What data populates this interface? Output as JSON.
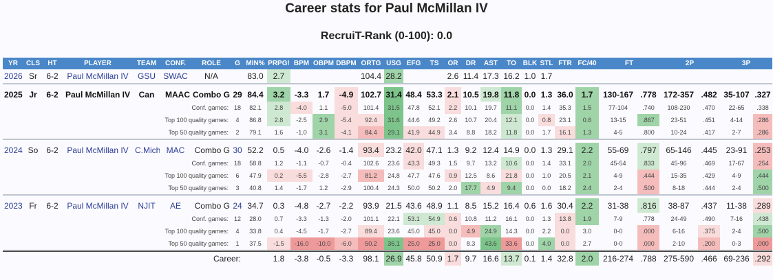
{
  "title": "Career stats for Paul McMillan IV",
  "subtitle": "RecruiT-Rank (0-100): 0.0",
  "headers": [
    "YR",
    "CLS",
    "HT",
    "PLAYER",
    "TEAM",
    "CONF.",
    "ROLE",
    "G",
    "MIN%",
    "PRPG!",
    "BPM",
    "OBPM",
    "DBPM",
    "ORTG",
    "USG",
    "EFG",
    "TS",
    "OR",
    "DR",
    "AST",
    "TO",
    "BLK",
    "STL",
    "FTR",
    "FC/40",
    "FT",
    "",
    "2P",
    "",
    "3P",
    ""
  ],
  "rows": {
    "y2026": [
      "2026",
      "Sr",
      "6-2",
      "Paul McMillan IV",
      "GSU",
      "SWAC",
      "N/A",
      "",
      "83.0",
      "2.7",
      "",
      "",
      "",
      "104.4",
      "28.2",
      "",
      "",
      "2.6",
      "11.4",
      "17.3",
      "16.2",
      "1.0",
      "1.7",
      "",
      "",
      "",
      "",
      "",
      "",
      "",
      ""
    ],
    "y2025": [
      "2025",
      "Jr",
      "6-2",
      "Paul McMillan IV",
      "Can",
      "MAAC",
      "Combo G",
      "29",
      "84.4",
      "3.2",
      "-3.3",
      "1.7",
      "-4.9",
      "102.7",
      "31.4",
      "48.4",
      "53.3",
      "2.1",
      "10.5",
      "19.8",
      "11.8",
      "0.0",
      "1.3",
      "36.0",
      "1.7",
      "130-167",
      ".778",
      "172-357",
      ".482",
      "35-107",
      ".327"
    ],
    "y2025_conf": [
      "Conf. games:",
      "18",
      "82.1",
      "2.8",
      "-4.0",
      "1.1",
      "-5.0",
      "101.4",
      "31.5",
      "47.8",
      "52.1",
      "2.2",
      "10.1",
      "19.7",
      "11.1",
      "0.0",
      "1.4",
      "35.3",
      "1.5",
      "77-104",
      ".740",
      "108-230",
      ".470",
      "22-65",
      ".338"
    ],
    "y2025_t100": [
      "Top 100 quality games:",
      "4",
      "86.8",
      "2.8",
      "-2.5",
      "2.9",
      "-5.4",
      "92.4",
      "31.6",
      "44.6",
      "49.2",
      "2.6",
      "10.7",
      "20.4",
      "12.1",
      "0.0",
      "0.8",
      "23.1",
      "0.6",
      "13-15",
      ".867",
      "23-51",
      ".451",
      "4-14",
      ".286"
    ],
    "y2025_t50": [
      "Top 50 quality games:",
      "2",
      "79.1",
      "1.6",
      "-1.0",
      "3.1",
      "-4.1",
      "84.4",
      "29.1",
      "41.9",
      "44.9",
      "3.4",
      "8.8",
      "18.2",
      "11.8",
      "0.0",
      "1.7",
      "16.1",
      "1.3",
      "4-5",
      ".800",
      "10-24",
      ".417",
      "2-7",
      ".286"
    ],
    "y2024": [
      "2024",
      "So",
      "6-2",
      "Paul McMillan IV",
      "C.Mich",
      "MAC",
      "Combo G",
      "30",
      "52.2",
      "0.5",
      "-4.0",
      "-2.6",
      "-1.4",
      "93.4",
      "23.2",
      "42.0",
      "47.1",
      "1.3",
      "9.2",
      "12.4",
      "14.9",
      "0.0",
      "1.3",
      "29.1",
      "2.2",
      "55-69",
      ".797",
      "65-146",
      ".445",
      "23-91",
      ".253"
    ],
    "y2024_conf": [
      "Conf. games:",
      "18",
      "58.8",
      "1.2",
      "-1.1",
      "-0.7",
      "-0.4",
      "102.6",
      "23.6",
      "43.3",
      "49.3",
      "1.5",
      "9.7",
      "13.2",
      "10.6",
      "0.0",
      "1.4",
      "33.1",
      "2.0",
      "45-54",
      ".833",
      "45-96",
      ".469",
      "17-67",
      ".254"
    ],
    "y2024_t100": [
      "Top 100 quality games:",
      "6",
      "47.9",
      "0.2",
      "-5.5",
      "-2.8",
      "-2.7",
      "81.2",
      "24.8",
      "47.7",
      "47.6",
      "0.9",
      "12.5",
      "8.6",
      "21.8",
      "0.0",
      "1.0",
      "20.5",
      "2.1",
      "4-9",
      ".444",
      "15-35",
      ".429",
      "4-9",
      ".444"
    ],
    "y2024_t50": [
      "Top 50 quality games:",
      "3",
      "40.8",
      "1.4",
      "-1.7",
      "1.2",
      "-2.9",
      "100.4",
      "24.3",
      "50.0",
      "50.2",
      "2.0",
      "17.7",
      "4.9",
      "9.4",
      "0.0",
      "0.0",
      "18.2",
      "2.4",
      "2-4",
      ".500",
      "8-18",
      ".444",
      "2-4",
      ".500"
    ],
    "y2023": [
      "2023",
      "Fr",
      "6-2",
      "Paul McMillan IV",
      "NJIT",
      "AE",
      "Combo G",
      "24",
      "34.7",
      "0.3",
      "-4.8",
      "-2.7",
      "-2.2",
      "93.9",
      "21.5",
      "43.6",
      "48.9",
      "1.1",
      "8.5",
      "15.2",
      "16.4",
      "0.6",
      "1.6",
      "30.4",
      "2.2",
      "31-38",
      ".816",
      "38-87",
      ".437",
      "11-38",
      ".289"
    ],
    "y2023_conf": [
      "Conf. games:",
      "12",
      "28.0",
      "0.7",
      "-3.3",
      "-1.3",
      "-2.0",
      "101.1",
      "22.1",
      "53.1",
      "54.9",
      "0.6",
      "10.8",
      "11.2",
      "16.1",
      "0.0",
      "1.3",
      "13.8",
      "1.9",
      "7-9",
      ".778",
      "24-49",
      ".490",
      "7-16",
      ".438"
    ],
    "y2023_t100": [
      "Top 100 quality games:",
      "4",
      "33.8",
      "0.4",
      "-4.5",
      "-1.7",
      "-2.7",
      "89.4",
      "23.6",
      "45.0",
      "45.0",
      "0.0",
      "4.9",
      "24.9",
      "14.3",
      "0.0",
      "2.2",
      "0.0",
      "3.0",
      "0-0",
      ".000",
      "6-16",
      ".375",
      "2-4",
      ".500"
    ],
    "y2023_t50": [
      "Top 50 quality games:",
      "1",
      "37.5",
      "-1.5",
      "-16.0",
      "-10.0",
      "-6.0",
      "50.2",
      "36.1",
      "25.0",
      "25.0",
      "0.0",
      "8.3",
      "43.6",
      "33.6",
      "0.0",
      "4.0",
      "0.0",
      "2.7",
      "0-0",
      ".000",
      "2-10",
      ".200",
      "0-3",
      ".000"
    ],
    "career": [
      "Career:",
      "1.8",
      "-3.8",
      "-0.5",
      "-3.3",
      "98.1",
      "26.9",
      "45.8",
      "50.9",
      "1.7",
      "9.7",
      "16.6",
      "13.7",
      "0.1",
      "1.4",
      "32.8",
      "2.0",
      "216-274",
      ".788",
      "275-590",
      ".466",
      "69-236",
      ".292"
    ]
  },
  "colors": {
    "header_bg": "#4a87c8",
    "link": "#2b3c94",
    "good": "#9fd3a8",
    "bad": "#f5bcbc"
  }
}
